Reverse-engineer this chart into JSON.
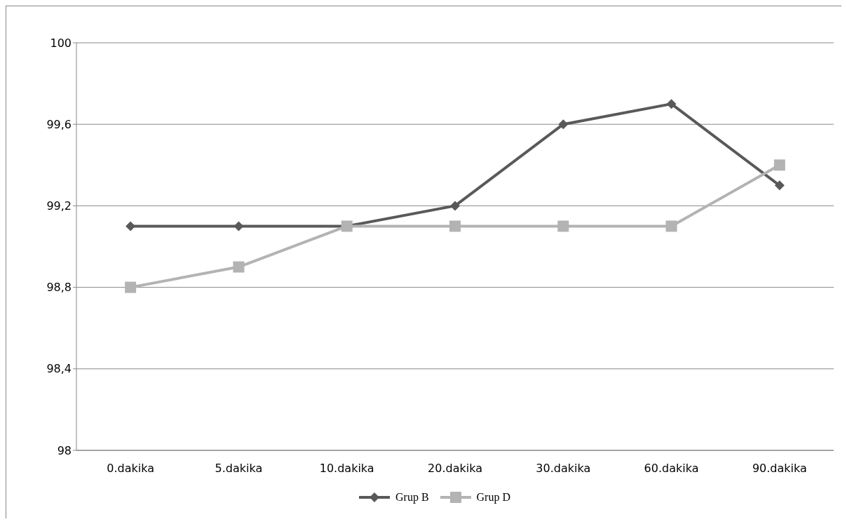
{
  "chart_data": {
    "type": "line",
    "categories": [
      "0.dakika",
      "5.dakika",
      "10.dakika",
      "20.dakika",
      "30.dakika",
      "60.dakika",
      "90.dakika"
    ],
    "series": [
      {
        "name": "Grup B",
        "color": "#595959",
        "marker": "diamond",
        "values": [
          99.1,
          99.1,
          99.1,
          99.2,
          99.6,
          99.7,
          99.3
        ]
      },
      {
        "name": "Grup D",
        "color": "#b3b3b3",
        "marker": "square",
        "values": [
          98.8,
          98.9,
          99.1,
          99.1,
          99.1,
          99.1,
          99.4
        ]
      }
    ],
    "ylim": [
      98,
      100
    ],
    "yticks": [
      98,
      {
        "value": 98.4,
        "label": "98,4"
      },
      {
        "value": 98.8,
        "label": "98,8"
      },
      {
        "value": 99.2,
        "label": "99,2"
      },
      {
        "value": 99.6,
        "label": "99,6"
      },
      100
    ],
    "grid": "y",
    "legend": "bottom",
    "line_style": "solid"
  }
}
